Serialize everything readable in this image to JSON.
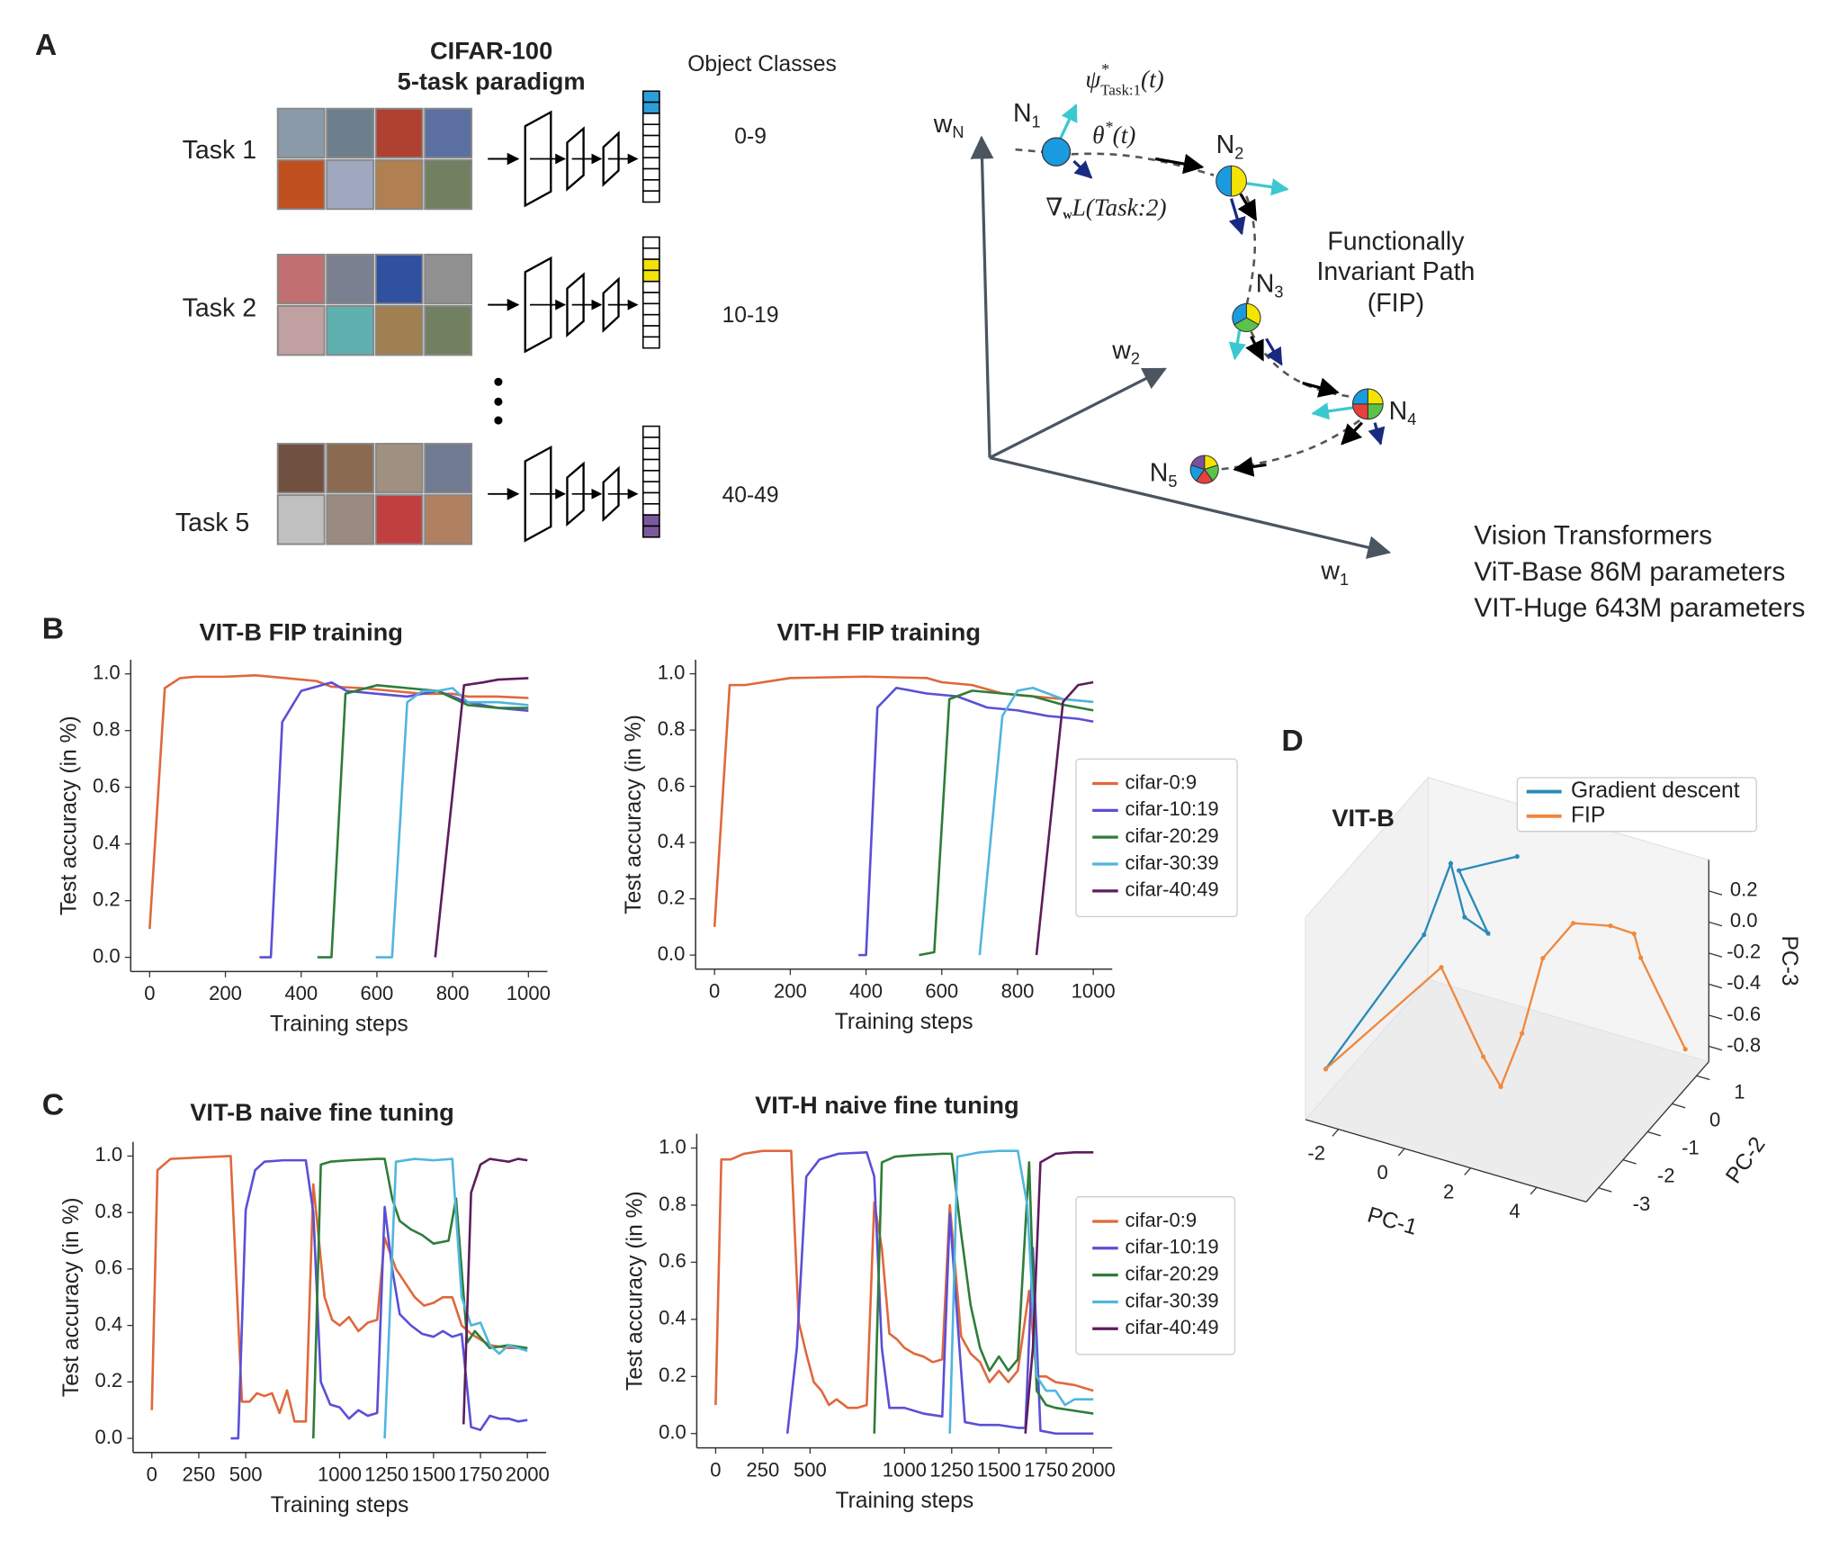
{
  "panel_labels": [
    "A",
    "B",
    "C",
    "D"
  ],
  "diagram": {
    "dataset_title": "CIFAR-100",
    "paradigm": "5-task paradigm",
    "classes_header": "Object Classes",
    "tasks": [
      {
        "label": "Task 1",
        "classes": "0-9"
      },
      {
        "label": "Task 2",
        "classes": "10-19"
      },
      {
        "label": "Task 5",
        "classes": "40-49"
      }
    ],
    "axes": {
      "wN": {
        "main": "w",
        "sub": "N"
      },
      "w2": {
        "main": "w",
        "sub": "2"
      },
      "w1": {
        "main": "w",
        "sub": "1"
      }
    },
    "nodes": [
      {
        "main": "N",
        "sub": "1"
      },
      {
        "main": "N",
        "sub": "2"
      },
      {
        "main": "N",
        "sub": "3"
      },
      {
        "main": "N",
        "sub": "4"
      },
      {
        "main": "N",
        "sub": "5"
      }
    ],
    "psi": {
      "main": "ψ",
      "sup": "*",
      "sub": "Task:1",
      "arg": "(t)"
    },
    "theta": {
      "main": "θ",
      "sup": "*",
      "arg": "(t)"
    },
    "grad": {
      "main": "∇",
      "sub": "w",
      "rest": "L(Task:2)"
    },
    "fip_label": [
      "Functionally",
      "Invariant Path",
      "(FIP)"
    ],
    "model_info": [
      "Vision Transformers",
      "ViT-Base 86M parameters",
      "VIT-Huge 643M parameters"
    ]
  },
  "chart_data": [
    {
      "type": "line",
      "title": "VIT-B FIP training",
      "xlabel": "Training steps",
      "ylabel": "Test accuracy (in %)",
      "xlim": [
        -50,
        1050
      ],
      "ylim": [
        -0.05,
        1.05
      ],
      "xticks": [
        0,
        200,
        400,
        600,
        800,
        1000
      ],
      "yticks": [
        {
          "value": 0,
          "label": "0.0"
        },
        0.2,
        0.4,
        0.6,
        0.8,
        {
          "value": 1,
          "label": "1.0"
        }
      ],
      "series": [
        {
          "color": "#e0683c",
          "x": [
            0,
            40,
            80,
            120,
            200,
            280,
            360,
            440,
            480,
            560,
            640,
            720,
            800,
            840,
            920,
            1000
          ],
          "values": [
            0.1,
            0.95,
            0.985,
            0.99,
            0.99,
            0.995,
            0.985,
            0.975,
            0.955,
            0.95,
            0.94,
            0.93,
            0.93,
            0.92,
            0.92,
            0.915
          ]
        },
        {
          "color": "#5a4fd6",
          "x": [
            290,
            320,
            350,
            400,
            480,
            520,
            600,
            680,
            760,
            840,
            920,
            1000
          ],
          "values": [
            0,
            0,
            0.83,
            0.94,
            0.97,
            0.94,
            0.93,
            0.92,
            0.94,
            0.9,
            0.88,
            0.87
          ]
        },
        {
          "color": "#2e7d38",
          "x": [
            443,
            480,
            517,
            600,
            680,
            760,
            840,
            920,
            1000
          ],
          "values": [
            0,
            0,
            0.93,
            0.96,
            0.95,
            0.94,
            0.89,
            0.88,
            0.88
          ]
        },
        {
          "color": "#4fb6dd",
          "x": [
            597,
            640,
            680,
            720,
            760,
            800,
            840,
            920,
            1000
          ],
          "values": [
            0,
            0,
            0.9,
            0.94,
            0.94,
            0.95,
            0.9,
            0.9,
            0.89
          ]
        },
        {
          "color": "#5e1c5c",
          "x": [
            754,
            830,
            880,
            920,
            1000
          ],
          "values": [
            0,
            0.96,
            0.97,
            0.98,
            0.985
          ]
        }
      ]
    },
    {
      "type": "line",
      "title": "VIT-H FIP training",
      "xlabel": "Training steps",
      "ylabel": "Test accuracy (in %)",
      "xlim": [
        -50,
        1050
      ],
      "ylim": [
        -0.05,
        1.05
      ],
      "xticks": [
        0,
        200,
        400,
        600,
        800,
        1000
      ],
      "yticks": [
        {
          "value": 0,
          "label": "0.0"
        },
        0.2,
        0.4,
        0.6,
        0.8,
        {
          "value": 1,
          "label": "1.0"
        }
      ],
      "legend": "right",
      "series": [
        {
          "name": "cifar-0:9",
          "color": "#e0683c",
          "x": [
            0,
            40,
            80,
            200,
            400,
            560,
            600,
            680,
            760,
            840,
            920,
            1000
          ],
          "values": [
            0.1,
            0.96,
            0.96,
            0.985,
            0.99,
            0.985,
            0.97,
            0.96,
            0.93,
            0.92,
            0.91,
            0.9
          ]
        },
        {
          "name": "cifar-10:19",
          "color": "#5a4fd6",
          "x": [
            380,
            400,
            430,
            480,
            560,
            640,
            720,
            800,
            880,
            960,
            1000
          ],
          "values": [
            0,
            0,
            0.88,
            0.95,
            0.93,
            0.92,
            0.88,
            0.87,
            0.85,
            0.84,
            0.83
          ]
        },
        {
          "name": "cifar-20:29",
          "color": "#2e7d38",
          "x": [
            540,
            580,
            620,
            680,
            760,
            840,
            920,
            1000
          ],
          "values": [
            0,
            0.01,
            0.91,
            0.94,
            0.93,
            0.92,
            0.89,
            0.87
          ]
        },
        {
          "name": "cifar-30:39",
          "color": "#4fb6dd",
          "x": [
            700,
            760,
            800,
            840,
            880,
            920,
            1000
          ],
          "values": [
            0,
            0.85,
            0.94,
            0.95,
            0.93,
            0.91,
            0.9
          ]
        },
        {
          "name": "cifar-40:49",
          "color": "#5e1c5c",
          "x": [
            850,
            920,
            960,
            1000
          ],
          "values": [
            0,
            0.9,
            0.96,
            0.97
          ]
        }
      ]
    },
    {
      "type": "line",
      "title": "VIT-B naive fine tuning",
      "xlabel": "Training steps",
      "ylabel": "Test accuracy (in %)",
      "xlim": [
        -100,
        2100
      ],
      "ylim": [
        -0.05,
        1.05
      ],
      "xticks": [
        0,
        250,
        500,
        1000,
        1250,
        1500,
        1750,
        2000
      ],
      "yticks": [
        {
          "value": 0,
          "label": "0.0"
        },
        0.2,
        0.4,
        0.6,
        0.8,
        {
          "value": 1,
          "label": "1.0"
        }
      ],
      "series": [
        {
          "color": "#e0683c",
          "x": [
            0,
            30,
            100,
            250,
            420,
            480,
            520,
            560,
            600,
            640,
            680,
            720,
            760,
            820,
            860,
            920,
            960,
            1000,
            1050,
            1100,
            1150,
            1200,
            1240,
            1300,
            1350,
            1400,
            1450,
            1500,
            1550,
            1600,
            1650,
            1700,
            1800,
            1900,
            2000
          ],
          "values": [
            0.1,
            0.95,
            0.99,
            0.995,
            1.0,
            0.13,
            0.13,
            0.16,
            0.15,
            0.16,
            0.09,
            0.17,
            0.06,
            0.06,
            0.9,
            0.5,
            0.42,
            0.4,
            0.43,
            0.38,
            0.41,
            0.42,
            0.71,
            0.6,
            0.55,
            0.5,
            0.47,
            0.48,
            0.5,
            0.5,
            0.4,
            0.37,
            0.33,
            0.32,
            0.32
          ]
        },
        {
          "color": "#5a4fd6",
          "x": [
            420,
            460,
            500,
            550,
            600,
            700,
            820,
            860,
            900,
            950,
            1000,
            1050,
            1100,
            1150,
            1200,
            1240,
            1280,
            1320,
            1380,
            1440,
            1500,
            1550,
            1600,
            1650,
            1700,
            1750,
            1800,
            1850,
            1900,
            1950,
            2000
          ],
          "values": [
            0,
            0,
            0.81,
            0.95,
            0.98,
            0.985,
            0.985,
            0.8,
            0.2,
            0.12,
            0.11,
            0.07,
            0.1,
            0.08,
            0.09,
            0.82,
            0.6,
            0.44,
            0.4,
            0.37,
            0.36,
            0.38,
            0.36,
            0.37,
            0.04,
            0.03,
            0.08,
            0.07,
            0.07,
            0.06,
            0.065
          ]
        },
        {
          "color": "#2e7d38",
          "x": [
            860,
            900,
            950,
            1050,
            1200,
            1240,
            1280,
            1320,
            1380,
            1440,
            1500,
            1580,
            1620,
            1680,
            1720,
            1800,
            1900,
            2000
          ],
          "values": [
            0,
            0.97,
            0.98,
            0.985,
            0.99,
            0.99,
            0.85,
            0.77,
            0.74,
            0.72,
            0.69,
            0.7,
            0.85,
            0.34,
            0.38,
            0.32,
            0.33,
            0.32
          ]
        },
        {
          "color": "#4fb6dd",
          "x": [
            1240,
            1300,
            1400,
            1500,
            1600,
            1650,
            1700,
            1750,
            1800,
            1850,
            1900,
            2000
          ],
          "values": [
            0,
            0.98,
            0.99,
            0.985,
            0.99,
            0.5,
            0.4,
            0.41,
            0.33,
            0.3,
            0.33,
            0.31
          ]
        },
        {
          "color": "#5e1c5c",
          "x": [
            1660,
            1700,
            1750,
            1800,
            1850,
            1900,
            1950,
            2000
          ],
          "values": [
            0.05,
            0.87,
            0.97,
            0.99,
            0.985,
            0.98,
            0.99,
            0.985
          ]
        }
      ]
    },
    {
      "type": "line",
      "title": "VIT-H naive fine tuning",
      "xlabel": "Training steps",
      "ylabel": "Test accuracy (in %)",
      "xlim": [
        -100,
        2100
      ],
      "ylim": [
        -0.05,
        1.05
      ],
      "xticks": [
        0,
        250,
        500,
        1000,
        1250,
        1500,
        1750,
        2000
      ],
      "yticks": [
        {
          "value": 0,
          "label": "0.0"
        },
        0.2,
        0.4,
        0.6,
        0.8,
        {
          "value": 1,
          "label": "1.0"
        }
      ],
      "legend": "right",
      "series": [
        {
          "name": "cifar-0:9",
          "color": "#e0683c",
          "x": [
            0,
            30,
            80,
            150,
            250,
            400,
            440,
            480,
            520,
            560,
            600,
            640,
            700,
            750,
            800,
            840,
            880,
            920,
            960,
            1000,
            1050,
            1100,
            1150,
            1200,
            1240,
            1300,
            1350,
            1400,
            1450,
            1500,
            1550,
            1600,
            1660,
            1700,
            1750,
            1800,
            1900,
            2000
          ],
          "values": [
            0.1,
            0.96,
            0.96,
            0.98,
            0.99,
            0.99,
            0.39,
            0.28,
            0.18,
            0.15,
            0.1,
            0.12,
            0.09,
            0.09,
            0.1,
            0.81,
            0.65,
            0.35,
            0.33,
            0.3,
            0.28,
            0.27,
            0.25,
            0.26,
            0.8,
            0.34,
            0.28,
            0.25,
            0.18,
            0.22,
            0.18,
            0.22,
            0.5,
            0.2,
            0.2,
            0.18,
            0.17,
            0.15
          ]
        },
        {
          "name": "cifar-10:19",
          "color": "#5a4fd6",
          "x": [
            380,
            430,
            480,
            550,
            650,
            800,
            840,
            880,
            920,
            1000,
            1050,
            1100,
            1200,
            1240,
            1280,
            1320,
            1400,
            1500,
            1600,
            1640,
            1680,
            1720,
            1800,
            1900,
            2000
          ],
          "values": [
            0,
            0.3,
            0.9,
            0.96,
            0.98,
            0.985,
            0.9,
            0.3,
            0.09,
            0.09,
            0.08,
            0.07,
            0.06,
            0.77,
            0.4,
            0.04,
            0.03,
            0.03,
            0.02,
            0.02,
            0.65,
            0.01,
            0,
            0,
            0
          ]
        },
        {
          "name": "cifar-20:29",
          "color": "#2e7d38",
          "x": [
            840,
            880,
            950,
            1050,
            1200,
            1250,
            1300,
            1350,
            1400,
            1450,
            1500,
            1550,
            1600,
            1660,
            1700,
            1750,
            1800,
            1900,
            2000
          ],
          "values": [
            0,
            0.95,
            0.97,
            0.975,
            0.98,
            0.98,
            0.7,
            0.45,
            0.3,
            0.22,
            0.27,
            0.22,
            0.26,
            0.95,
            0.15,
            0.1,
            0.09,
            0.08,
            0.07
          ]
        },
        {
          "name": "cifar-30:39",
          "color": "#4fb6dd",
          "x": [
            1240,
            1280,
            1400,
            1500,
            1600,
            1650,
            1700,
            1750,
            1800,
            1850,
            1900,
            2000
          ],
          "values": [
            0,
            0.97,
            0.985,
            0.99,
            0.99,
            0.8,
            0.2,
            0.15,
            0.15,
            0.1,
            0.12,
            0.12
          ]
        },
        {
          "name": "cifar-40:49",
          "color": "#5e1c5c",
          "x": [
            1640,
            1680,
            1720,
            1800,
            1900,
            2000
          ],
          "values": [
            0,
            0.3,
            0.95,
            0.98,
            0.985,
            0.985
          ]
        }
      ]
    },
    {
      "type": "line3d",
      "title": "VIT-B",
      "xlabel": "PC-1",
      "ylabel": "PC-2",
      "zlabel": "PC-3",
      "xlim": [
        -3,
        5.5
      ],
      "ylim": [
        -3.5,
        1.5
      ],
      "zlim": [
        -0.9,
        0.4
      ],
      "xticks": [
        -2,
        0,
        2,
        4
      ],
      "yticks": [
        -3,
        -2,
        -1,
        0,
        1
      ],
      "zticks": [
        -0.8,
        -0.6,
        -0.4,
        -0.2,
        {
          "value": 0,
          "label": "0.0"
        },
        0.2
      ],
      "legend": "upper right",
      "series": [
        {
          "name": "Gradient descent",
          "color": "#2a8ab8",
          "x": [
            -2.76,
            -2.01,
            -1.2,
            -0.78,
            -0.07,
            -0.95,
            0.81
          ],
          "y": [
            -3,
            0,
            0,
            0,
            0,
            0,
            0
          ],
          "z": [
            -0.65,
            -0.28,
            0.23,
            -0.09,
            -0.15,
            0.2,
            0.4
          ]
        },
        {
          "name": "FIP",
          "color": "#f0883e",
          "x": [
            -2.76,
            0.37,
            1.27,
            1.8,
            2.07,
            2.33,
            2.88,
            3.64,
            3.98,
            3.96,
            5.16
          ],
          "y": [
            -3,
            -2.5,
            -2,
            -2,
            -1.5,
            -1,
            -0.5,
            0,
            0.5,
            0.8,
            1
          ],
          "z": [
            -0.65,
            0.11,
            -0.5,
            -0.66,
            -0.39,
            0.02,
            0.19,
            0.13,
            0.01,
            -0.2,
            -0.75
          ]
        }
      ]
    }
  ]
}
